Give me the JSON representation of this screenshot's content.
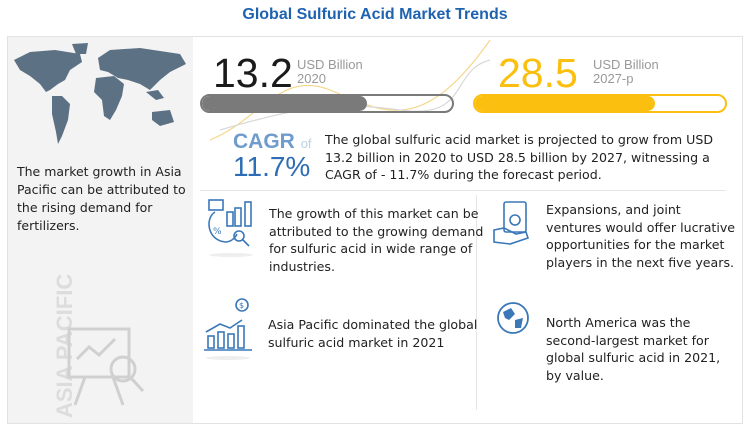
{
  "title": "Global Sulfuric Acid Market Trends",
  "left_panel": {
    "text": "The market growth in Asia Pacific can be attributed to the rising demand for fertilizers.",
    "region_label": "ASIA PACIFIC"
  },
  "market_2020": {
    "value": "13.2",
    "unit": "USD Billion",
    "year": "2020",
    "bar_fill_percent": 66,
    "color": "#7a7a7a"
  },
  "market_2027": {
    "value": "28.5",
    "unit": "USD Billion",
    "year": "2027-p",
    "bar_fill_percent": 72,
    "color": "#fbbf0f"
  },
  "cagr": {
    "label": "CAGR",
    "of": "of",
    "value": "11.7%",
    "text": "The global sulfuric acid market is projected to grow from USD 13.2 billion in 2020 to USD 28.5 billion by 2027, witnessing a CAGR of - 11.7% during the forecast period."
  },
  "cards": [
    {
      "icon": "analytics-icon",
      "text": "The growth of this market can be attributed to the growing demand for sulfuric acid in wide range of industries."
    },
    {
      "icon": "money-growth-chart-icon",
      "text": "Asia Pacific dominated the global sulfuric acid market in 2021"
    },
    {
      "icon": "cash-hand-icon",
      "text": "Expansions, and joint ventures would offer lucrative opportunities for the market players in the next five years."
    },
    {
      "icon": "globe-icon",
      "text": "North America was the second-largest market for global sulfuric acid in 2021, by value."
    }
  ],
  "colors": {
    "title": "#1f63b0",
    "icon": "#3a78b8",
    "accent_yellow": "#fbbf0f"
  }
}
